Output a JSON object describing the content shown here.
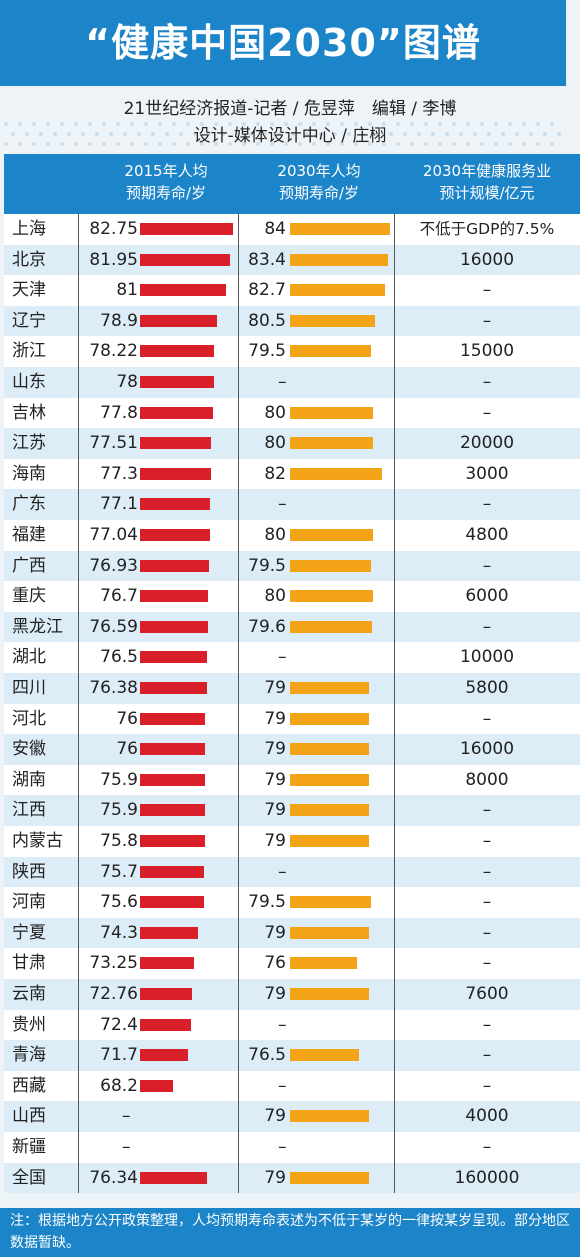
{
  "title": "“健康中国2030”图谱",
  "credits": {
    "line1": "21世纪经济报道-记者 / 危昱萍　编辑 / 李博",
    "line2": "设计-媒体设计中心 / 庄栩"
  },
  "headers": {
    "col1_line1": "2015年人均",
    "col1_line2": "预期寿命/岁",
    "col2_line1": "2030年人均",
    "col2_line2": "预期寿命/岁",
    "col3_line1": "2030年健康服务业",
    "col3_line2": "预计规模/亿元"
  },
  "colors": {
    "band": "#1c84c9",
    "bar_2015": "#d9202a",
    "bar_2030": "#f3a316",
    "row_alt": "#dcedf8"
  },
  "chart_data": {
    "type": "table",
    "bar_scale_min": 60,
    "bar_scale_max": 84,
    "rows": [
      {
        "province": "上海",
        "life_2015": "82.75",
        "life_2030": "84",
        "scale_2030": "不低于GDP的7.5%"
      },
      {
        "province": "北京",
        "life_2015": "81.95",
        "life_2030": "83.4",
        "scale_2030": "16000"
      },
      {
        "province": "天津",
        "life_2015": "81",
        "life_2030": "82.7",
        "scale_2030": "–"
      },
      {
        "province": "辽宁",
        "life_2015": "78.9",
        "life_2030": "80.5",
        "scale_2030": "–"
      },
      {
        "province": "浙江",
        "life_2015": "78.22",
        "life_2030": "79.5",
        "scale_2030": "15000"
      },
      {
        "province": "山东",
        "life_2015": "78",
        "life_2030": "–",
        "scale_2030": "–"
      },
      {
        "province": "吉林",
        "life_2015": "77.8",
        "life_2030": "80",
        "scale_2030": "–"
      },
      {
        "province": "江苏",
        "life_2015": "77.51",
        "life_2030": "80",
        "scale_2030": "20000"
      },
      {
        "province": "海南",
        "life_2015": "77.3",
        "life_2030": "82",
        "scale_2030": "3000"
      },
      {
        "province": "广东",
        "life_2015": "77.1",
        "life_2030": "–",
        "scale_2030": "–"
      },
      {
        "province": "福建",
        "life_2015": "77.04",
        "life_2030": "80",
        "scale_2030": "4800"
      },
      {
        "province": "广西",
        "life_2015": "76.93",
        "life_2030": "79.5",
        "scale_2030": "–"
      },
      {
        "province": "重庆",
        "life_2015": "76.7",
        "life_2030": "80",
        "scale_2030": "6000"
      },
      {
        "province": "黑龙江",
        "life_2015": "76.59",
        "life_2030": "79.6",
        "scale_2030": "–"
      },
      {
        "province": "湖北",
        "life_2015": "76.5",
        "life_2030": "–",
        "scale_2030": "10000"
      },
      {
        "province": "四川",
        "life_2015": "76.38",
        "life_2030": "79",
        "scale_2030": "5800"
      },
      {
        "province": "河北",
        "life_2015": "76",
        "life_2030": "79",
        "scale_2030": "–"
      },
      {
        "province": "安徽",
        "life_2015": "76",
        "life_2030": "79",
        "scale_2030": "16000"
      },
      {
        "province": "湖南",
        "life_2015": "75.9",
        "life_2030": "79",
        "scale_2030": "8000"
      },
      {
        "province": "江西",
        "life_2015": "75.9",
        "life_2030": "79",
        "scale_2030": "–"
      },
      {
        "province": "内蒙古",
        "life_2015": "75.8",
        "life_2030": "79",
        "scale_2030": "–"
      },
      {
        "province": "陕西",
        "life_2015": "75.7",
        "life_2030": "–",
        "scale_2030": "–"
      },
      {
        "province": "河南",
        "life_2015": "75.6",
        "life_2030": "79.5",
        "scale_2030": "–"
      },
      {
        "province": "宁夏",
        "life_2015": "74.3",
        "life_2030": "79",
        "scale_2030": "–"
      },
      {
        "province": "甘肃",
        "life_2015": "73.25",
        "life_2030": "76",
        "scale_2030": "–"
      },
      {
        "province": "云南",
        "life_2015": "72.76",
        "life_2030": "79",
        "scale_2030": "7600"
      },
      {
        "province": "贵州",
        "life_2015": "72.4",
        "life_2030": "–",
        "scale_2030": "–"
      },
      {
        "province": "青海",
        "life_2015": "71.7",
        "life_2030": "76.5",
        "scale_2030": "–"
      },
      {
        "province": "西藏",
        "life_2015": "68.2",
        "life_2030": "–",
        "scale_2030": "–"
      },
      {
        "province": "山西",
        "life_2015": "–",
        "life_2030": "79",
        "scale_2030": "4000"
      },
      {
        "province": "新疆",
        "life_2015": "–",
        "life_2030": "–",
        "scale_2030": "–"
      },
      {
        "province": "全国",
        "life_2015": "76.34",
        "life_2030": "79",
        "scale_2030": "160000"
      }
    ]
  },
  "note": "注：根据地方公开政策整理，人均预期寿命表述为不低于某岁的一律按某岁呈现。部分地区数据暂缺。"
}
